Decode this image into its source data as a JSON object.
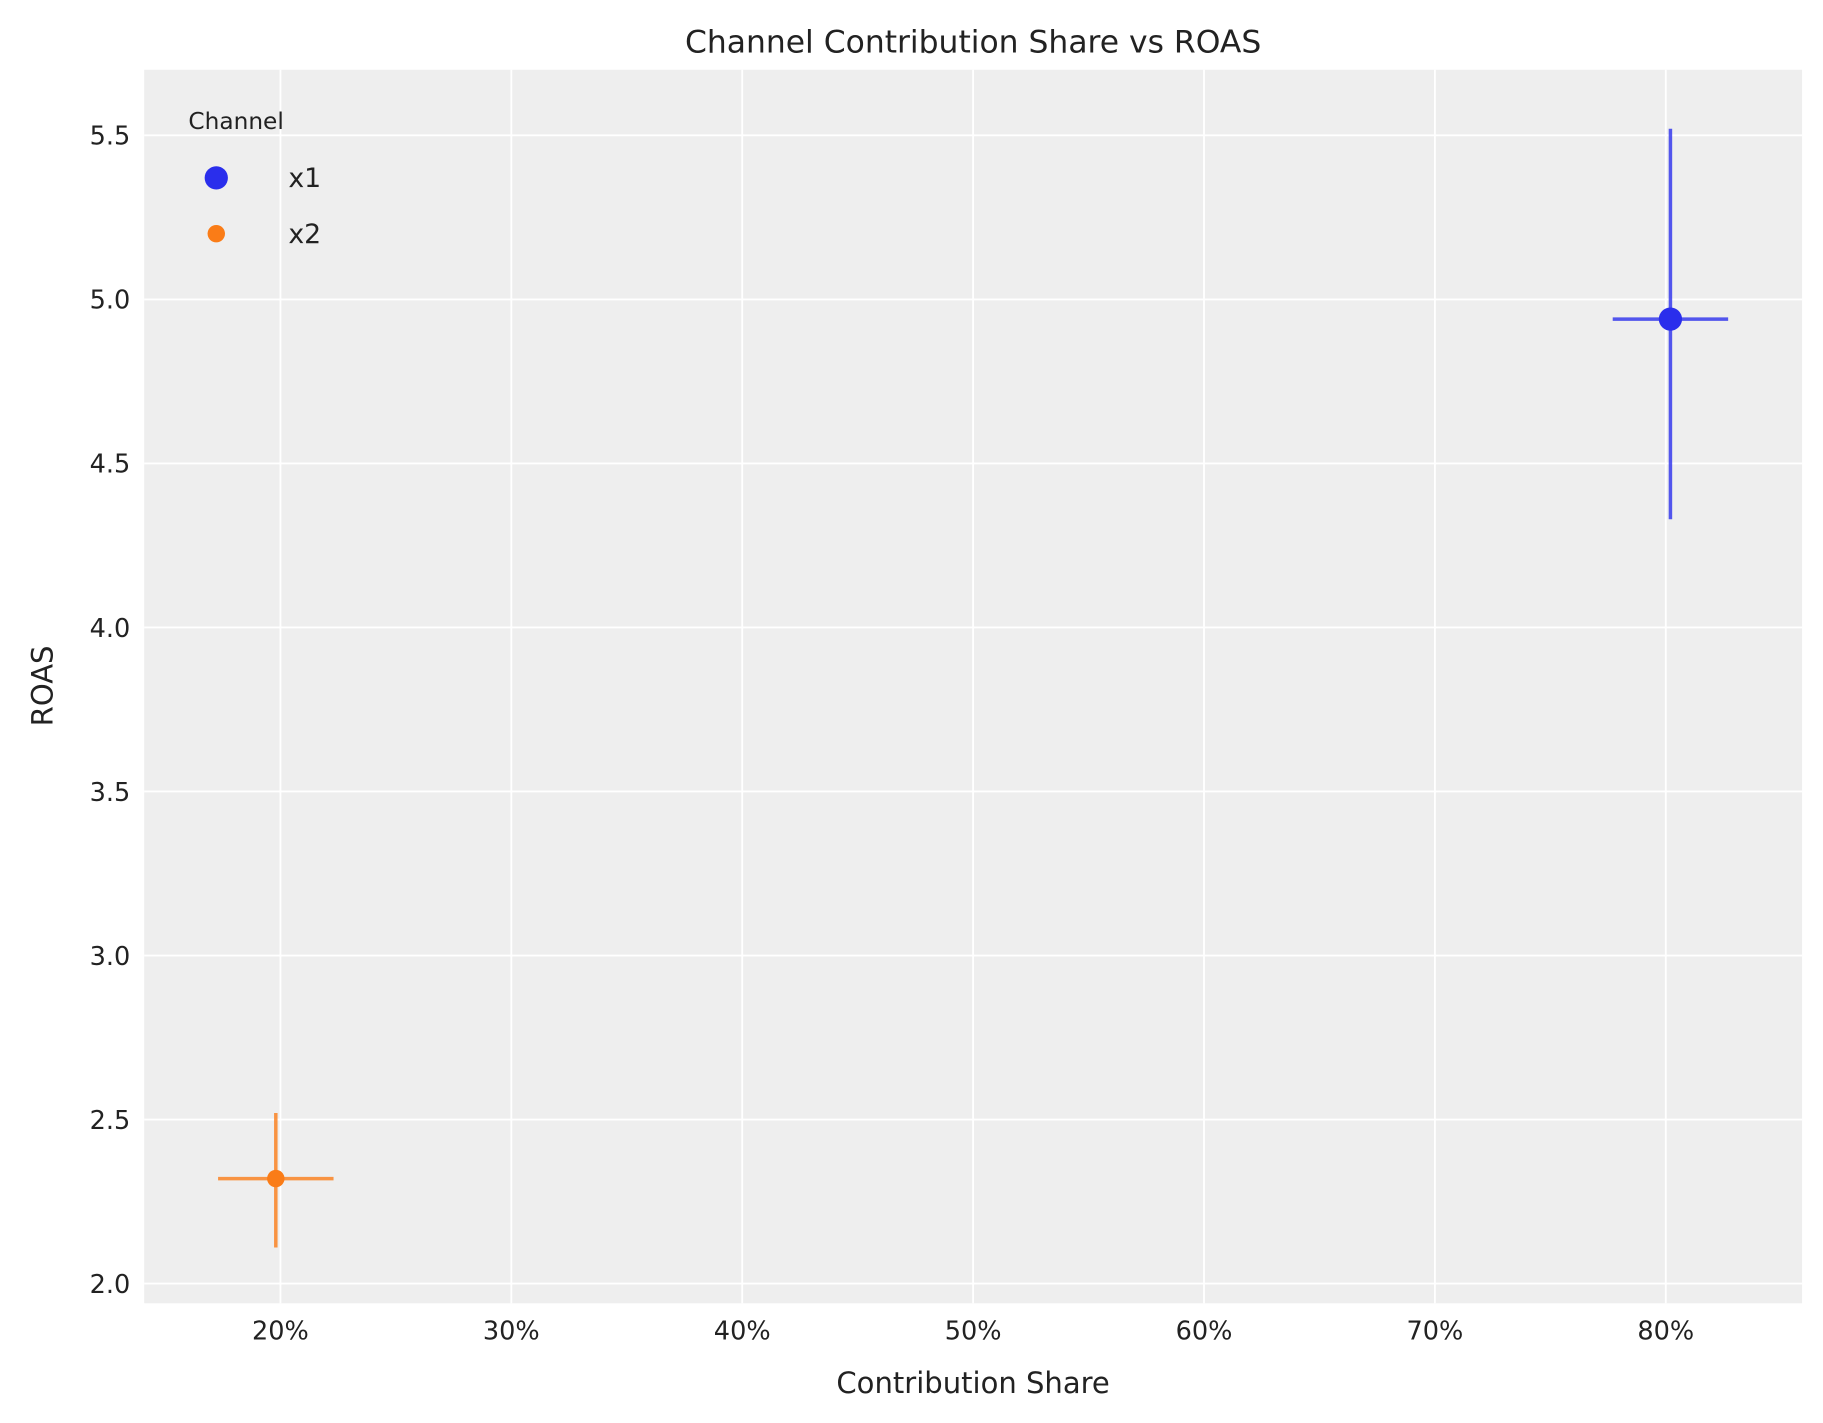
{
  "chart_data": {
    "type": "scatter",
    "title": "Channel Contribution Share vs ROAS",
    "xlabel": "Contribution Share",
    "ylabel": "ROAS",
    "xlim": [
      14.1,
      85.9
    ],
    "ylim": [
      1.94,
      5.7
    ],
    "x_ticks": [
      20,
      30,
      40,
      50,
      60,
      70,
      80
    ],
    "x_tick_labels": [
      "20%",
      "30%",
      "40%",
      "50%",
      "60%",
      "70%",
      "80%"
    ],
    "y_ticks": [
      2.0,
      2.5,
      3.0,
      3.5,
      4.0,
      4.5,
      5.0,
      5.5
    ],
    "y_tick_labels": [
      "2.0",
      "2.5",
      "3.0",
      "3.5",
      "4.0",
      "4.5",
      "5.0",
      "5.5"
    ],
    "grid": true,
    "legend": {
      "title": "Channel",
      "placement": "top-left"
    },
    "series": [
      {
        "name": "x1",
        "color": "#2a2eec",
        "x": 80.2,
        "y": 4.94,
        "x_err": [
          77.7,
          82.7
        ],
        "y_err": [
          4.33,
          5.52
        ]
      },
      {
        "name": "x2",
        "color": "#fa7c17",
        "x": 19.8,
        "y": 2.32,
        "x_err": [
          17.3,
          22.3
        ],
        "y_err": [
          2.11,
          2.52
        ]
      }
    ]
  }
}
